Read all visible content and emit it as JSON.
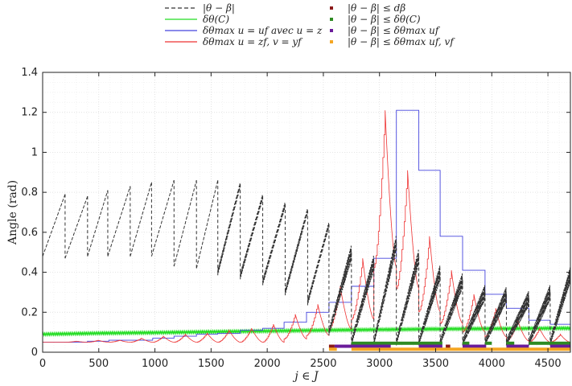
{
  "chart_data": {
    "type": "line",
    "xlabel": "j ∈ J",
    "ylabel": "Angle (rad)",
    "xlim": [
      0,
      4700
    ],
    "ylim": [
      0,
      1.4
    ],
    "xticks": [
      "0",
      "500",
      "1000",
      "1500",
      "2000",
      "2500",
      "3000",
      "3500",
      "4000",
      "4500"
    ],
    "yticks": [
      "0",
      "0.2",
      "0.4",
      "0.6",
      "0.8",
      "1",
      "1.2",
      "1.4"
    ],
    "grid": true,
    "legend_placement": "top",
    "legend": [
      {
        "label": "|θ − β|",
        "style": "dashed",
        "color": "#333333"
      },
      {
        "label": "δθ(C)",
        "style": "line",
        "color": "#22dd22"
      },
      {
        "label": "δθmax u = uf avec u = z",
        "style": "line",
        "color": "#4444dd"
      },
      {
        "label": "δθmax u = zf, v = yf",
        "style": "line",
        "color": "#ee3333"
      },
      {
        "label": "|θ − β| ≤ dβ",
        "style": "marker",
        "color": "#8b1a1a"
      },
      {
        "label": "|θ − β| ≤ δθ(C)",
        "style": "marker",
        "color": "#2e8b22"
      },
      {
        "label": "|θ − β| ≤ δθmax uf",
        "style": "marker",
        "color": "#6a1b9a"
      },
      {
        "label": "|θ − β| ≤ δθmax uf, vf",
        "style": "marker",
        "color": "#f5a623"
      }
    ],
    "series": [
      {
        "name": "|θ − β|",
        "segments": [
          [
            [
              0,
              0.48
            ],
            [
              200,
              0.79
            ]
          ],
          [
            [
              200,
              0.47
            ],
            [
              400,
              0.78
            ]
          ],
          [
            [
              400,
              0.48
            ],
            [
              580,
              0.81
            ]
          ],
          [
            [
              580,
              0.48
            ],
            [
              780,
              0.83
            ]
          ],
          [
            [
              780,
              0.48
            ],
            [
              970,
              0.85
            ]
          ],
          [
            [
              970,
              0.48
            ],
            [
              1170,
              0.86
            ]
          ],
          [
            [
              1170,
              0.43
            ],
            [
              1370,
              0.86
            ]
          ],
          [
            [
              1370,
              0.42
            ],
            [
              1560,
              0.86
            ]
          ],
          [
            [
              1560,
              0.4
            ],
            [
              1760,
              0.84
            ]
          ],
          [
            [
              1760,
              0.38
            ],
            [
              1960,
              0.78
            ]
          ],
          [
            [
              1960,
              0.35
            ],
            [
              2160,
              0.74
            ]
          ],
          [
            [
              2160,
              0.3
            ],
            [
              2360,
              0.71
            ]
          ],
          [
            [
              2360,
              0.25
            ],
            [
              2550,
              0.64
            ]
          ],
          [
            [
              2550,
              0.1
            ],
            [
              2750,
              0.5
            ]
          ],
          [
            [
              2750,
              0.05
            ],
            [
              2950,
              0.45
            ]
          ],
          [
            [
              2950,
              0.05
            ],
            [
              3150,
              0.55
            ]
          ],
          [
            [
              3150,
              0.05
            ],
            [
              3350,
              0.48
            ]
          ],
          [
            [
              3350,
              0.05
            ],
            [
              3540,
              0.4
            ]
          ],
          [
            [
              3540,
              0.05
            ],
            [
              3740,
              0.36
            ]
          ],
          [
            [
              3740,
              0.05
            ],
            [
              3940,
              0.3
            ]
          ],
          [
            [
              3940,
              0.05
            ],
            [
              4130,
              0.29
            ]
          ],
          [
            [
              4130,
              0.05
            ],
            [
              4330,
              0.27
            ]
          ],
          [
            [
              4330,
              0.05
            ],
            [
              4520,
              0.3
            ]
          ],
          [
            [
              4520,
              0.05
            ],
            [
              4700,
              0.39
            ]
          ]
        ]
      },
      {
        "name": "δθ(C)",
        "points": [
          [
            0,
            0.09
          ],
          [
            500,
            0.095
          ],
          [
            1000,
            0.098
          ],
          [
            1500,
            0.102
          ],
          [
            2000,
            0.106
          ],
          [
            2500,
            0.11
          ],
          [
            3000,
            0.113
          ],
          [
            3500,
            0.116
          ],
          [
            4000,
            0.118
          ],
          [
            4700,
            0.12
          ]
        ]
      },
      {
        "name": "δθmax u = uf avec u = z",
        "steps": [
          [
            0,
            0.05
          ],
          [
            200,
            0.05
          ],
          [
            400,
            0.055
          ],
          [
            590,
            0.06
          ],
          [
            780,
            0.06
          ],
          [
            980,
            0.07
          ],
          [
            1170,
            0.08
          ],
          [
            1370,
            0.09
          ],
          [
            1560,
            0.095
          ],
          [
            1760,
            0.11
          ],
          [
            1960,
            0.12
          ],
          [
            2150,
            0.15
          ],
          [
            2350,
            0.2
          ],
          [
            2550,
            0.25
          ],
          [
            2750,
            0.33
          ],
          [
            2950,
            0.47
          ],
          [
            3150,
            1.21
          ],
          [
            3350,
            0.91
          ],
          [
            3540,
            0.58
          ],
          [
            3740,
            0.41
          ],
          [
            3940,
            0.29
          ],
          [
            4130,
            0.22
          ],
          [
            4330,
            0.16
          ],
          [
            4520,
            0.14
          ],
          [
            4700,
            0.14
          ]
        ]
      },
      {
        "name": "δθmax u = zf, v = yf",
        "peaks": [
          [
            200,
            0.05
          ],
          [
            400,
            0.055
          ],
          [
            590,
            0.06
          ],
          [
            780,
            0.06
          ],
          [
            980,
            0.07
          ],
          [
            1170,
            0.08
          ],
          [
            1370,
            0.09
          ],
          [
            1560,
            0.095
          ],
          [
            1760,
            0.11
          ],
          [
            1960,
            0.12
          ],
          [
            2150,
            0.14
          ],
          [
            2350,
            0.19
          ],
          [
            2550,
            0.24
          ],
          [
            2750,
            0.33
          ],
          [
            2950,
            0.47
          ],
          [
            3150,
            1.21
          ],
          [
            3350,
            0.91
          ],
          [
            3540,
            0.58
          ],
          [
            3740,
            0.41
          ],
          [
            3940,
            0.29
          ],
          [
            4130,
            0.22
          ],
          [
            4330,
            0.16
          ],
          [
            4520,
            0.12
          ],
          [
            4700,
            0.09
          ]
        ]
      }
    ],
    "marker_bands": [
      {
        "name": "|θ − β| ≤ dβ",
        "y": 0.03,
        "x_ranges": [
          [
            2550,
            2600
          ],
          [
            3400,
            3450
          ],
          [
            3590,
            3630
          ],
          [
            4250,
            4290
          ]
        ]
      },
      {
        "name": "|θ − β| ≤ δθ(C)",
        "y": 0.045,
        "x_ranges": [
          [
            2750,
            3560
          ],
          [
            3740,
            3800
          ],
          [
            3940,
            4000
          ],
          [
            4130,
            4200
          ],
          [
            4330,
            4700
          ]
        ]
      },
      {
        "name": "|θ − β| ≤ δθmax uf",
        "y": 0.03,
        "x_ranges": [
          [
            2600,
            3100
          ],
          [
            3350,
            3560
          ],
          [
            3740,
            3950
          ],
          [
            4130,
            4330
          ],
          [
            4520,
            4700
          ]
        ]
      },
      {
        "name": "|θ − β| ≤ δθmax uf, vf",
        "y": 0.015,
        "x_ranges": [
          [
            2550,
            2620
          ],
          [
            2750,
            4700
          ]
        ]
      }
    ]
  }
}
